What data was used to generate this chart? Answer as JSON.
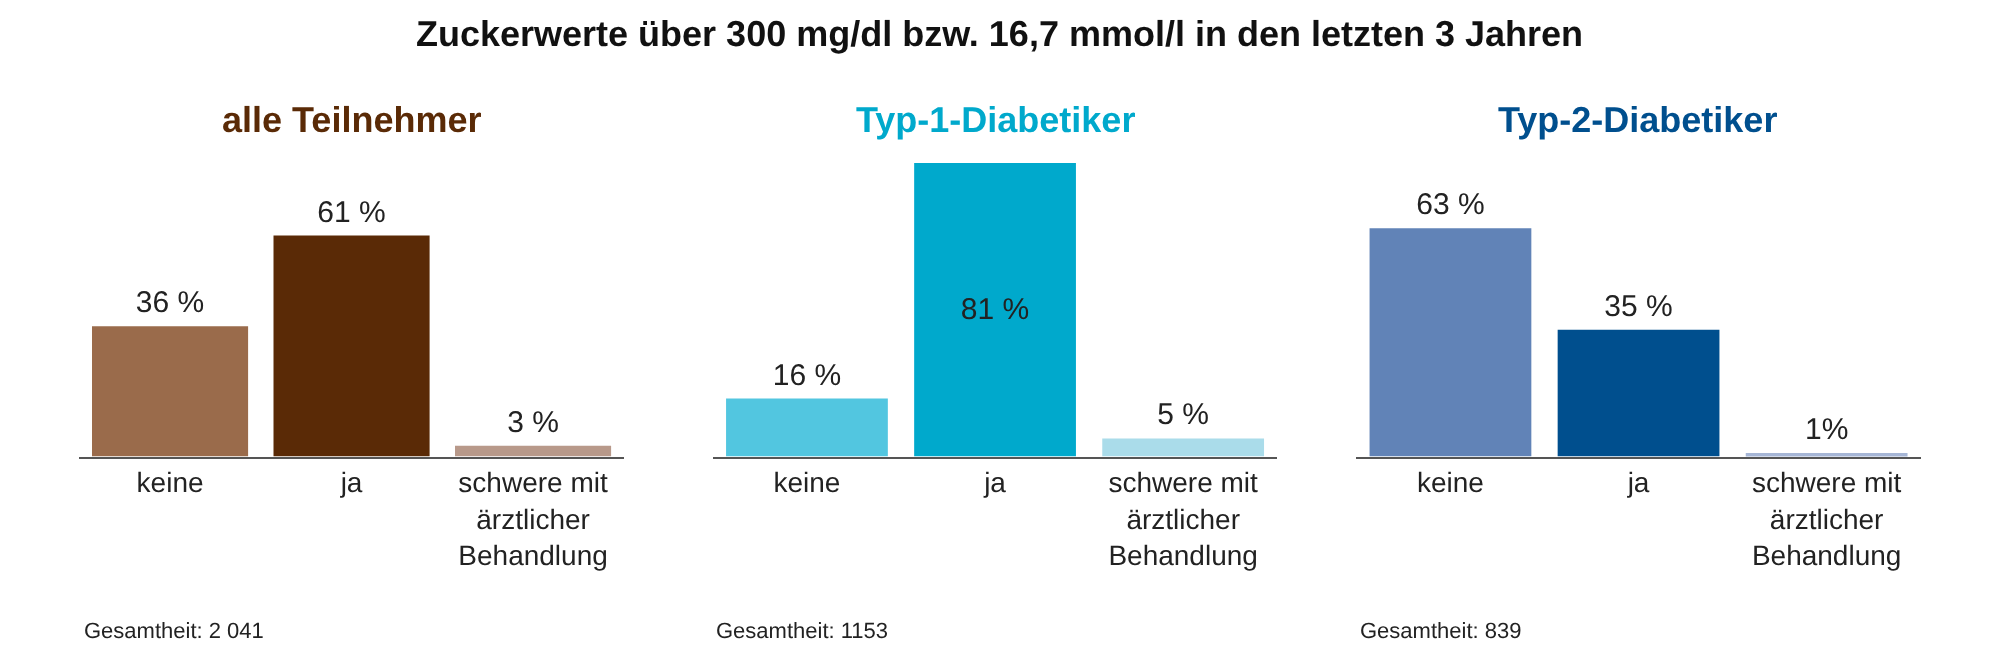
{
  "chart_data": [
    {
      "type": "bar",
      "title": "alle Teilnehmer",
      "categories": [
        "keine",
        "ja",
        "schwere mit ärztlicher Behandlung"
      ],
      "values": [
        36,
        61,
        3
      ],
      "colors": [
        "#9a6b4b",
        "#5a2a06",
        "#b8998a"
      ],
      "value_labels": [
        "36 %",
        "61 %",
        "3 %"
      ],
      "annotations": [
        "Zuckerwerte über 300 mg/dl bzw. 16,7 mmol/l in den letzten 3 Jahren",
        "Gesamtheit: 2 041"
      ]
    },
    {
      "type": "bar",
      "title": "Typ-1-Diabetiker",
      "categories": [
        "keine",
        "ja",
        "schwere mit ärztlicher Behandlung"
      ],
      "values": [
        16,
        81,
        5
      ],
      "colors": [
        "#52c6e0",
        "#00a9cc",
        "#aadcea"
      ],
      "value_labels": [
        "16 %",
        "81 %",
        "5 %"
      ],
      "annotations": [
        "Gesamtheit: 1153"
      ]
    },
    {
      "type": "bar",
      "title": "Typ-2-Diabetiker",
      "categories": [
        "keine",
        "ja",
        "schwere mit ärztlicher Behandlung"
      ],
      "values": [
        63,
        35,
        1
      ],
      "colors": [
        "#6183b7",
        "#004f8e",
        "#a6b6d6"
      ],
      "value_labels": [
        "63 %",
        "35 %",
        "1%"
      ],
      "annotations": [
        "Gesamtheit: 839"
      ]
    }
  ]
}
